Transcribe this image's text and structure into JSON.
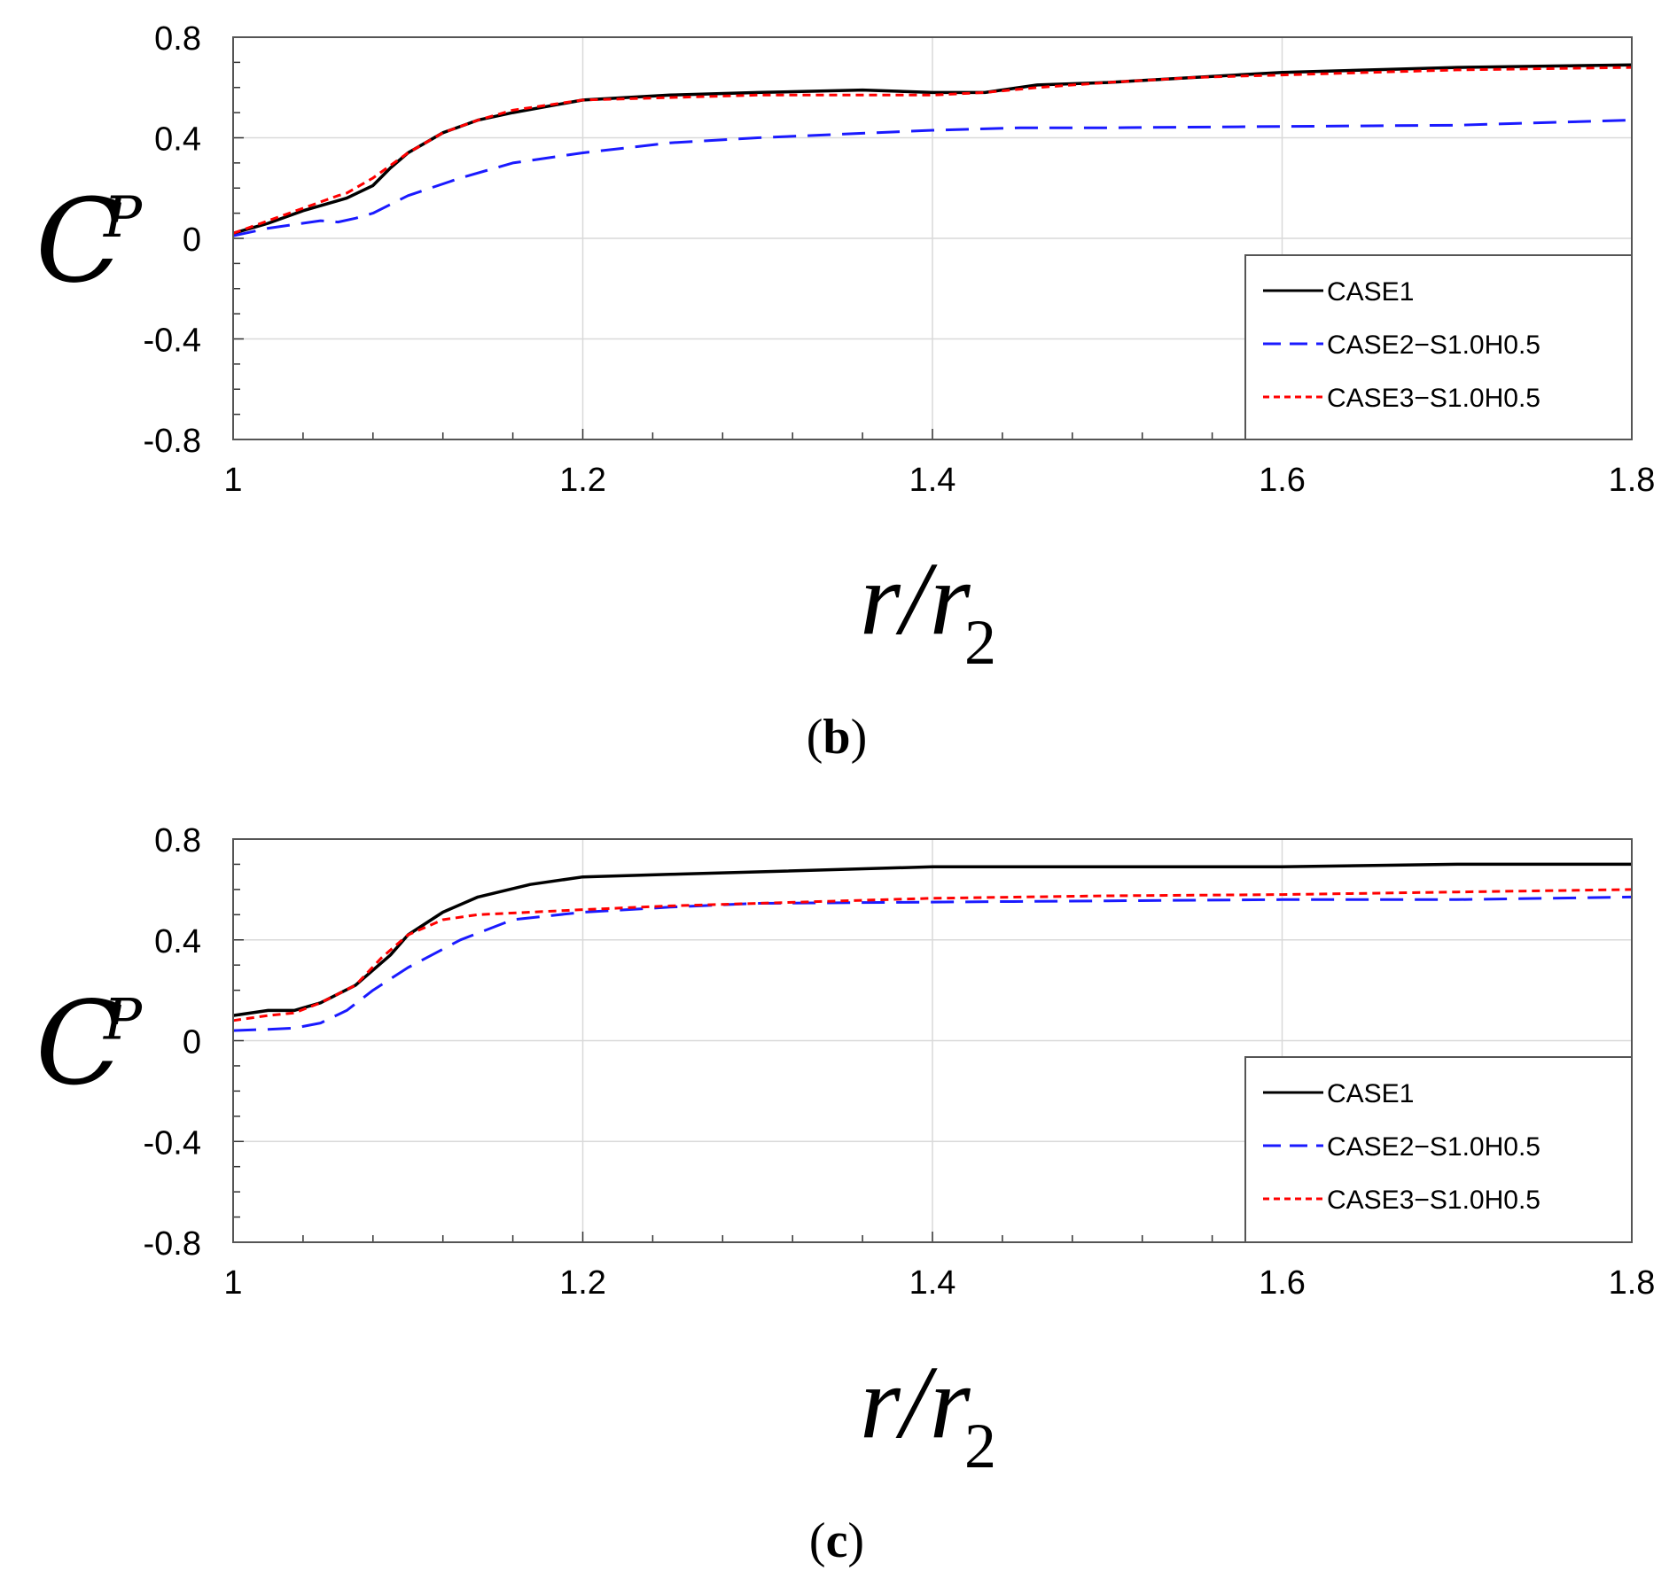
{
  "chart_data": [
    {
      "type": "line",
      "panel_label": "b",
      "xlabel": "r/r",
      "xlabel_subscript": "2",
      "ylabel": "C",
      "ylabel_subscript": "P",
      "xlim": [
        1.0,
        1.8
      ],
      "ylim": [
        -0.8,
        0.8
      ],
      "xticks": [
        1.0,
        1.2,
        1.4,
        1.6,
        1.8
      ],
      "xtick_labels": [
        "1",
        "1.2",
        "1.4",
        "1.6",
        "1.8"
      ],
      "yticks": [
        0.8,
        0.4,
        0.0,
        -0.4,
        -0.8
      ],
      "ytick_labels": [
        "0.8",
        "0.4",
        "0",
        "-0.4",
        "-0.8"
      ],
      "grid": true,
      "legend_position": "bottom-right",
      "series": [
        {
          "name": "CASE1",
          "color": "#000000",
          "style": "solid",
          "x": [
            1.0,
            1.02,
            1.04,
            1.06,
            1.065,
            1.08,
            1.09,
            1.1,
            1.12,
            1.14,
            1.16,
            1.2,
            1.25,
            1.3,
            1.36,
            1.4,
            1.43,
            1.46,
            1.5,
            1.55,
            1.6,
            1.7,
            1.8
          ],
          "y": [
            0.02,
            0.06,
            0.11,
            0.15,
            0.16,
            0.21,
            0.28,
            0.34,
            0.42,
            0.47,
            0.5,
            0.55,
            0.57,
            0.58,
            0.59,
            0.58,
            0.58,
            0.61,
            0.62,
            0.64,
            0.66,
            0.68,
            0.69
          ]
        },
        {
          "name": "CASE2−S1.0H0.5",
          "color": "#1a1aff",
          "style": "dashed",
          "x": [
            1.0,
            1.02,
            1.05,
            1.06,
            1.07,
            1.08,
            1.1,
            1.13,
            1.16,
            1.2,
            1.25,
            1.3,
            1.4,
            1.45,
            1.5,
            1.6,
            1.7,
            1.8
          ],
          "y": [
            0.01,
            0.04,
            0.07,
            0.065,
            0.08,
            0.1,
            0.17,
            0.24,
            0.3,
            0.34,
            0.38,
            0.4,
            0.43,
            0.44,
            0.44,
            0.445,
            0.45,
            0.47
          ]
        },
        {
          "name": "CASE3−S1.0H0.5",
          "color": "#ff0000",
          "style": "dotted",
          "x": [
            1.0,
            1.02,
            1.04,
            1.06,
            1.065,
            1.08,
            1.1,
            1.12,
            1.14,
            1.16,
            1.2,
            1.25,
            1.3,
            1.36,
            1.4,
            1.43,
            1.46,
            1.5,
            1.55,
            1.6,
            1.7,
            1.8
          ],
          "y": [
            0.02,
            0.07,
            0.12,
            0.17,
            0.18,
            0.24,
            0.34,
            0.42,
            0.47,
            0.51,
            0.55,
            0.56,
            0.57,
            0.57,
            0.57,
            0.58,
            0.6,
            0.62,
            0.64,
            0.65,
            0.67,
            0.68
          ]
        }
      ]
    },
    {
      "type": "line",
      "panel_label": "c",
      "xlabel": "r/r",
      "xlabel_subscript": "2",
      "ylabel": "C",
      "ylabel_subscript": "P",
      "xlim": [
        1.0,
        1.8
      ],
      "ylim": [
        -0.8,
        0.8
      ],
      "xticks": [
        1.0,
        1.2,
        1.4,
        1.6,
        1.8
      ],
      "xtick_labels": [
        "1",
        "1.2",
        "1.4",
        "1.6",
        "1.8"
      ],
      "yticks": [
        0.8,
        0.4,
        0.0,
        -0.4,
        -0.8
      ],
      "ytick_labels": [
        "0.8",
        "0.4",
        "0",
        "-0.4",
        "-0.8"
      ],
      "grid": true,
      "legend_position": "bottom-right",
      "series": [
        {
          "name": "CASE1",
          "color": "#000000",
          "style": "solid",
          "x": [
            1.0,
            1.02,
            1.035,
            1.05,
            1.07,
            1.09,
            1.1,
            1.12,
            1.14,
            1.17,
            1.2,
            1.25,
            1.3,
            1.4,
            1.5,
            1.6,
            1.7,
            1.8
          ],
          "y": [
            0.1,
            0.12,
            0.12,
            0.15,
            0.22,
            0.34,
            0.42,
            0.51,
            0.57,
            0.62,
            0.65,
            0.66,
            0.67,
            0.69,
            0.69,
            0.69,
            0.7,
            0.7
          ]
        },
        {
          "name": "CASE2−S1.0H0.5",
          "color": "#1a1aff",
          "style": "dashed",
          "x": [
            1.0,
            1.02,
            1.035,
            1.05,
            1.065,
            1.08,
            1.1,
            1.13,
            1.16,
            1.2,
            1.25,
            1.3,
            1.4,
            1.5,
            1.6,
            1.7,
            1.8
          ],
          "y": [
            0.04,
            0.045,
            0.05,
            0.07,
            0.12,
            0.2,
            0.29,
            0.4,
            0.48,
            0.51,
            0.53,
            0.545,
            0.55,
            0.555,
            0.56,
            0.56,
            0.57
          ]
        },
        {
          "name": "CASE3−S1.0H0.5",
          "color": "#ff0000",
          "style": "dotted",
          "x": [
            1.0,
            1.02,
            1.035,
            1.05,
            1.07,
            1.085,
            1.1,
            1.12,
            1.14,
            1.17,
            1.2,
            1.25,
            1.3,
            1.4,
            1.5,
            1.6,
            1.7,
            1.8
          ],
          "y": [
            0.08,
            0.1,
            0.11,
            0.15,
            0.22,
            0.33,
            0.42,
            0.48,
            0.5,
            0.51,
            0.52,
            0.535,
            0.545,
            0.565,
            0.575,
            0.58,
            0.59,
            0.6
          ]
        }
      ]
    }
  ]
}
